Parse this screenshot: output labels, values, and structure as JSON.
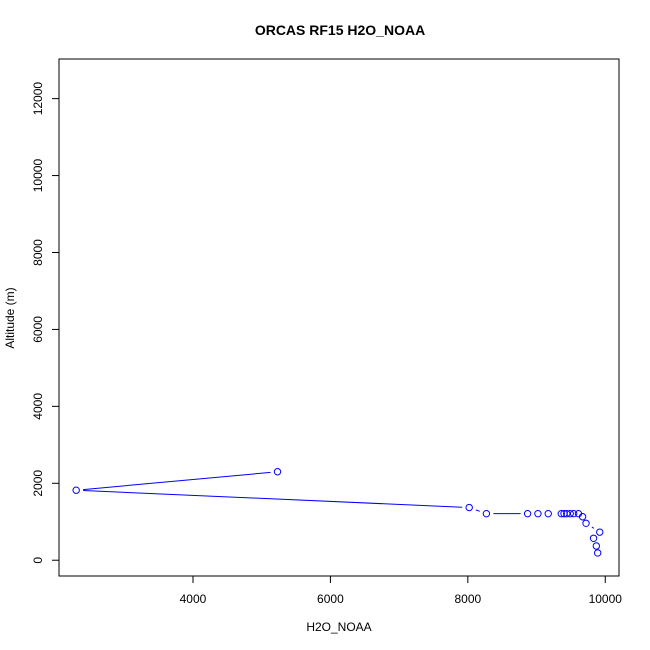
{
  "chart_data": {
    "type": "scatter",
    "title": "ORCAS RF15 H2O_NOAA",
    "xlabel": "H2O_NOAA",
    "ylabel": "Altitude (m)",
    "xlim": [
      2050,
      10200
    ],
    "ylim": [
      -410,
      13030
    ],
    "x_ticks": [
      4000,
      6000,
      8000,
      10000
    ],
    "y_ticks": [
      0,
      2000,
      4000,
      6000,
      8000,
      10000,
      12000
    ],
    "grid": false,
    "legend": "none",
    "style": "points-and-lines",
    "color": "#0000ff",
    "points": [
      {
        "x": 5230,
        "y": 2300
      },
      {
        "x": 2300,
        "y": 1820
      },
      {
        "x": 8020,
        "y": 1370
      },
      {
        "x": 8270,
        "y": 1210
      },
      {
        "x": 8870,
        "y": 1210
      },
      {
        "x": 9020,
        "y": 1210
      },
      {
        "x": 9170,
        "y": 1210
      },
      {
        "x": 9360,
        "y": 1210
      },
      {
        "x": 9400,
        "y": 1210
      },
      {
        "x": 9440,
        "y": 1210
      },
      {
        "x": 9490,
        "y": 1210
      },
      {
        "x": 9540,
        "y": 1210
      },
      {
        "x": 9610,
        "y": 1210
      },
      {
        "x": 9670,
        "y": 1130
      },
      {
        "x": 9720,
        "y": 960
      },
      {
        "x": 9920,
        "y": 730
      },
      {
        "x": 9830,
        "y": 570
      },
      {
        "x": 9870,
        "y": 370
      },
      {
        "x": 9890,
        "y": 190
      }
    ]
  }
}
